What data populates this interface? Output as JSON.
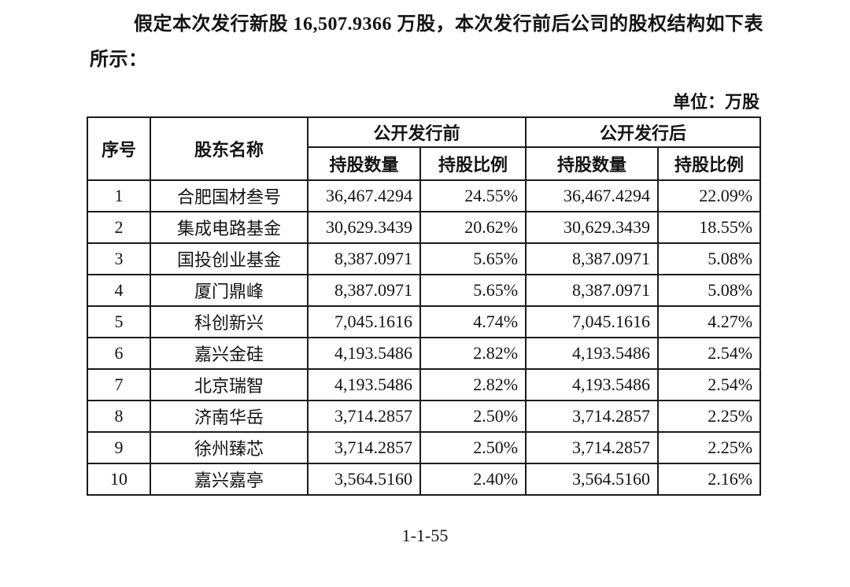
{
  "intro": {
    "line1": "假定本次发行新股 16,507.9366 万股，本次发行前后公司的股权结构如下表",
    "line2": "所示："
  },
  "unit_label": "单位：万股",
  "table": {
    "header": {
      "seq": "序号",
      "shareholder": "股东名称",
      "pre_offering": "公开发行前",
      "post_offering": "公开发行后",
      "shares_label": "持股数量",
      "ratio_label": "持股比例"
    },
    "rows": [
      {
        "seq": "1",
        "name": "合肥国材叁号",
        "pre_shares": "36,467.4294",
        "pre_ratio": "24.55%",
        "post_shares": "36,467.4294",
        "post_ratio": "22.09%"
      },
      {
        "seq": "2",
        "name": "集成电路基金",
        "pre_shares": "30,629.3439",
        "pre_ratio": "20.62%",
        "post_shares": "30,629.3439",
        "post_ratio": "18.55%"
      },
      {
        "seq": "3",
        "name": "国投创业基金",
        "pre_shares": "8,387.0971",
        "pre_ratio": "5.65%",
        "post_shares": "8,387.0971",
        "post_ratio": "5.08%"
      },
      {
        "seq": "4",
        "name": "厦门鼎峰",
        "pre_shares": "8,387.0971",
        "pre_ratio": "5.65%",
        "post_shares": "8,387.0971",
        "post_ratio": "5.08%"
      },
      {
        "seq": "5",
        "name": "科创新兴",
        "pre_shares": "7,045.1616",
        "pre_ratio": "4.74%",
        "post_shares": "7,045.1616",
        "post_ratio": "4.27%"
      },
      {
        "seq": "6",
        "name": "嘉兴金硅",
        "pre_shares": "4,193.5486",
        "pre_ratio": "2.82%",
        "post_shares": "4,193.5486",
        "post_ratio": "2.54%"
      },
      {
        "seq": "7",
        "name": "北京瑞智",
        "pre_shares": "4,193.5486",
        "pre_ratio": "2.82%",
        "post_shares": "4,193.5486",
        "post_ratio": "2.54%"
      },
      {
        "seq": "8",
        "name": "济南华岳",
        "pre_shares": "3,714.2857",
        "pre_ratio": "2.50%",
        "post_shares": "3,714.2857",
        "post_ratio": "2.25%"
      },
      {
        "seq": "9",
        "name": "徐州臻芯",
        "pre_shares": "3,714.2857",
        "pre_ratio": "2.50%",
        "post_shares": "3,714.2857",
        "post_ratio": "2.25%"
      },
      {
        "seq": "10",
        "name": "嘉兴嘉亭",
        "pre_shares": "3,564.5160",
        "pre_ratio": "2.40%",
        "post_shares": "3,564.5160",
        "post_ratio": "2.16%"
      }
    ]
  },
  "page_number": "1-1-55",
  "colors": {
    "background": "#ffffff",
    "text": "#141414",
    "table_border": "#1c1c1c"
  }
}
